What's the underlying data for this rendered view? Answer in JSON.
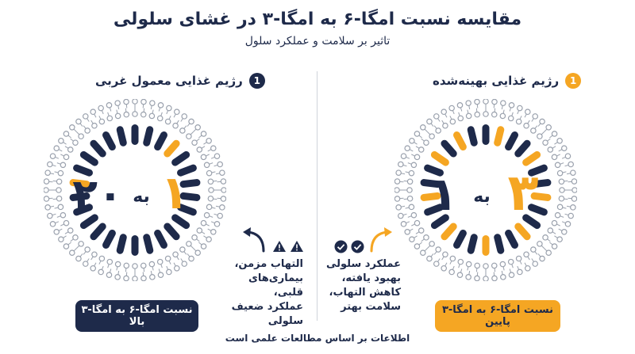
{
  "title": "مقایسه نسبت امگا-۶ به امگا-۳ در غشای سلولی",
  "subtitle": "تاثیر بر سلامت و عملکرد سلول",
  "colors": {
    "navy": "#1e2a4a",
    "orange": "#f5a623",
    "gray": "#9aa1ad"
  },
  "right_panel": {
    "number": "1",
    "heading": "رژیم غذایی بهینه‌شده",
    "ratio_left": "۳",
    "ratio_word": "به",
    "ratio_right": "۱",
    "effect_lines": [
      "عملکرد سلولی",
      "بهبود یافته،",
      "کاهش التهاب،",
      "سلامت بهتر"
    ],
    "icon": "check-circle-icon",
    "pill": "نسبت امگا-۶ به امگا-۳ پایین"
  },
  "left_panel": {
    "number": "1",
    "heading": "رژیم غذایی معمول غربی",
    "ratio_left": "۱",
    "ratio_word": "به",
    "ratio_right": "۲۰",
    "effect_lines": [
      "التهاب مزمن،",
      "بیماری‌های قلبی،",
      "عملکرد ضعیف",
      "سلولی"
    ],
    "icon": "warning-triangle-icon",
    "pill": "نسبت امگا-۶ به امگا-۳ بالا"
  },
  "footer": "اطلاعات بر اساس مطالعات علمی است"
}
